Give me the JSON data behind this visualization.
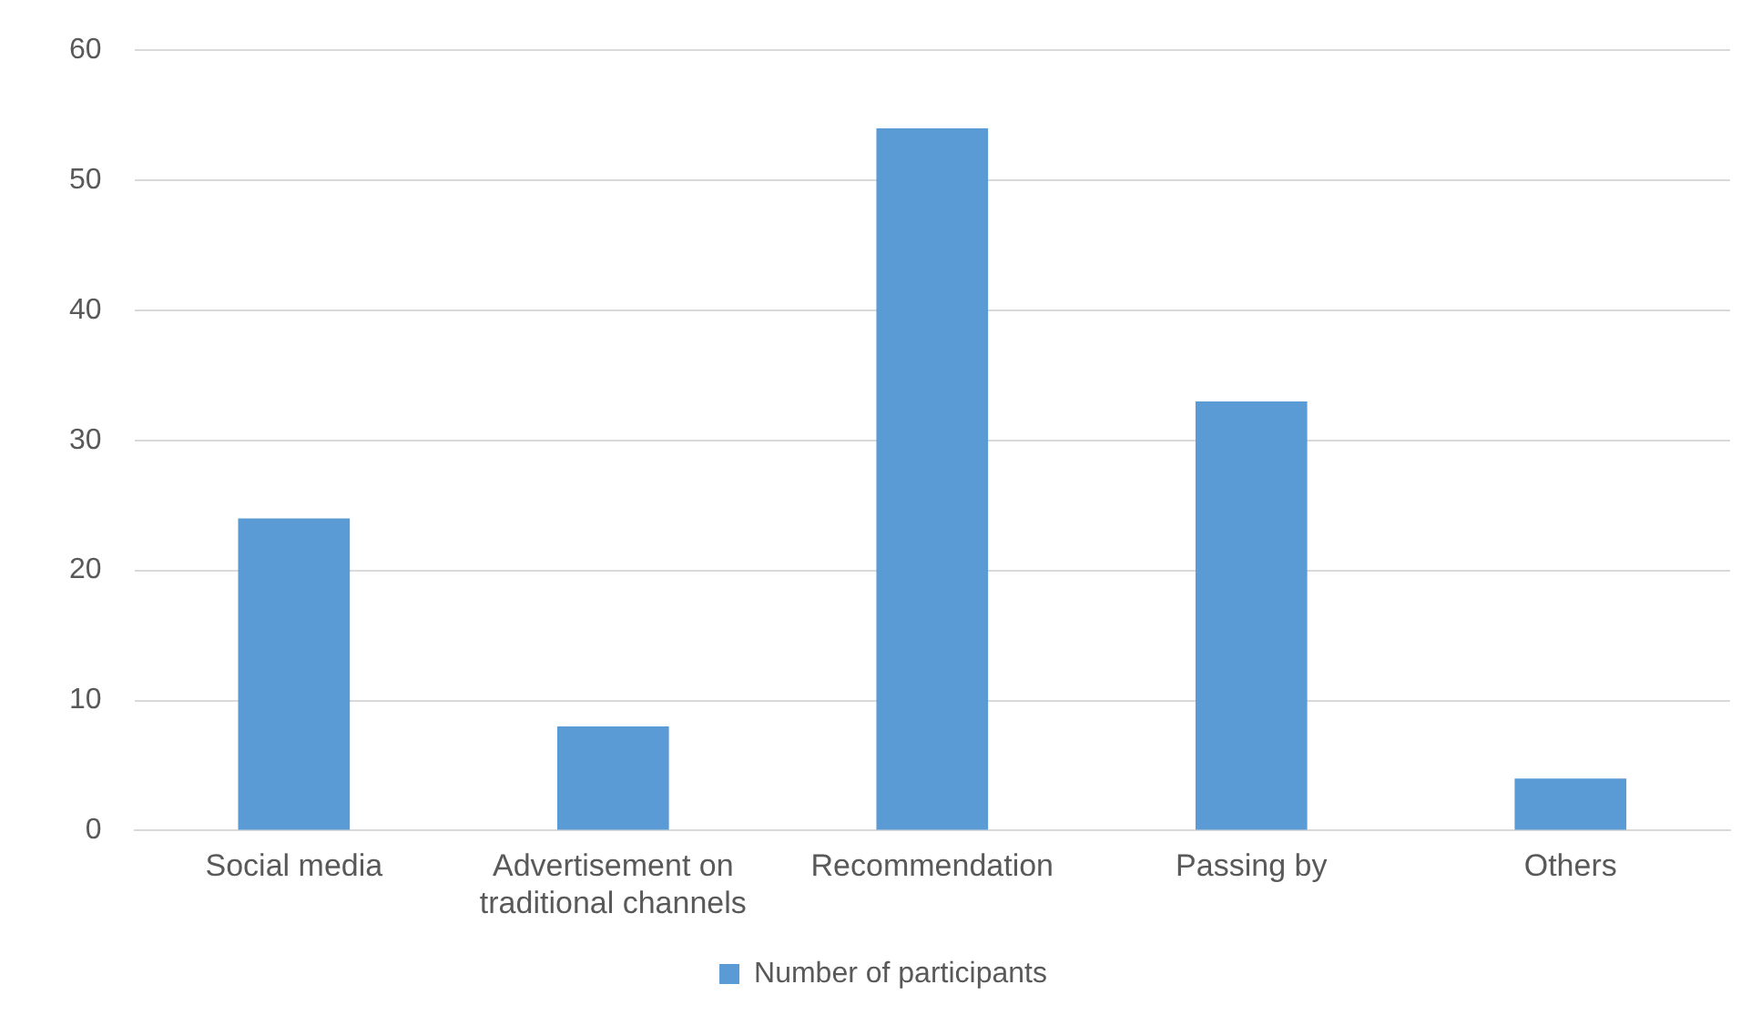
{
  "chart_data": {
    "type": "bar",
    "categories": [
      "Social media",
      "Advertisement on traditional channels",
      "Recommendation",
      "Passing by",
      "Others"
    ],
    "series": [
      {
        "name": "Number of participants",
        "color": "#5b9bd5",
        "values": [
          24,
          8,
          54,
          33,
          4
        ]
      }
    ],
    "ylim": [
      0,
      60
    ],
    "yticks": [
      0,
      10,
      20,
      30,
      40,
      50,
      60
    ],
    "grid": "y",
    "legend": "bottom"
  }
}
